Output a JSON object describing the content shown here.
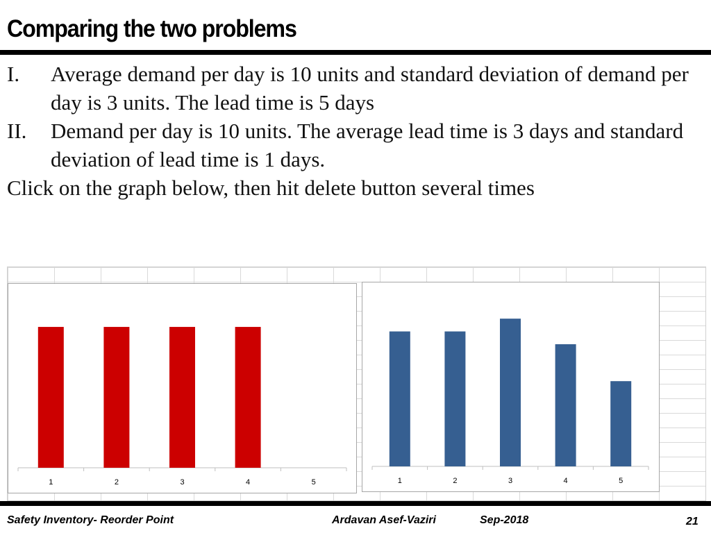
{
  "title": "Comparing the two problems",
  "items": [
    {
      "marker": "I.",
      "text": "Average demand per day is 10 units and standard deviation of demand per day is 3 units. The lead time is 5 days"
    },
    {
      "marker": "II.",
      "text": "Demand per day is 10 units. The average lead time is 3 days and standard deviation of lead time is 1 days."
    }
  ],
  "instruction": "Click on the graph below, then hit delete button  several times",
  "colors": {
    "left_bars": "#cc0000",
    "right_bars": "#365f91",
    "rules": "#000000"
  },
  "chart_data": [
    {
      "type": "bar",
      "categories": [
        "1",
        "2",
        "3",
        "4",
        "5"
      ],
      "values": [
        10,
        10,
        10,
        10,
        null
      ],
      "ylim": [
        0,
        10.2
      ],
      "color": "#cc0000"
    },
    {
      "type": "bar",
      "categories": [
        "1",
        "2",
        "3",
        "4",
        "5"
      ],
      "values": [
        9.5,
        9.5,
        10.4,
        8.6,
        6.0
      ],
      "ylim": [
        0,
        10.7
      ],
      "color": "#365f91"
    }
  ],
  "footer": {
    "left": "Safety Inventory- Reorder Point",
    "author": "Ardavan Asef-Vaziri",
    "date": "Sep-2018",
    "page": "21"
  }
}
